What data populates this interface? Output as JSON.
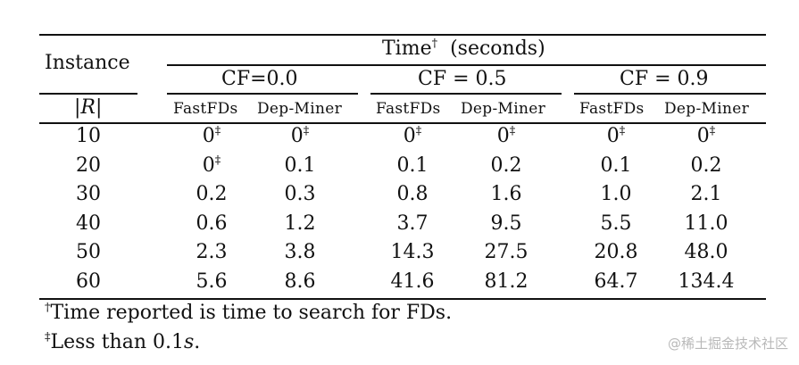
{
  "table": {
    "instance_header": "Instance",
    "r_header": "|R|",
    "time_header": "Time",
    "time_header_mark": "†",
    "time_header_unit": "(seconds)",
    "cf_groups": [
      "CF=0.0",
      "CF = 0.5",
      "CF = 0.9"
    ],
    "algo_headers": [
      "FastFDs",
      "Dep-Miner",
      "FastFDs",
      "Dep-Miner",
      "FastFDs",
      "Dep-Miner"
    ],
    "rows": [
      {
        "r": "10",
        "values": [
          [
            "0",
            "‡"
          ],
          [
            "0",
            "‡"
          ],
          [
            "0",
            "‡"
          ],
          [
            "0",
            "‡"
          ],
          [
            "0",
            "‡"
          ],
          [
            "0",
            "‡"
          ]
        ]
      },
      {
        "r": "20",
        "values": [
          [
            "0",
            "‡"
          ],
          [
            "0.1",
            ""
          ],
          [
            "0.1",
            ""
          ],
          [
            "0.2",
            ""
          ],
          [
            "0.1",
            ""
          ],
          [
            "0.2",
            ""
          ]
        ]
      },
      {
        "r": "30",
        "values": [
          [
            "0.2",
            ""
          ],
          [
            "0.3",
            ""
          ],
          [
            "0.8",
            ""
          ],
          [
            "1.6",
            ""
          ],
          [
            "1.0",
            ""
          ],
          [
            "2.1",
            ""
          ]
        ]
      },
      {
        "r": "40",
        "values": [
          [
            "0.6",
            ""
          ],
          [
            "1.2",
            ""
          ],
          [
            "3.7",
            ""
          ],
          [
            "9.5",
            ""
          ],
          [
            "5.5",
            ""
          ],
          [
            "11.0",
            ""
          ]
        ]
      },
      {
        "r": "50",
        "values": [
          [
            "2.3",
            ""
          ],
          [
            "3.8",
            ""
          ],
          [
            "14.3",
            ""
          ],
          [
            "27.5",
            ""
          ],
          [
            "20.8",
            ""
          ],
          [
            "48.0",
            ""
          ]
        ]
      },
      {
        "r": "60",
        "values": [
          [
            "5.6",
            ""
          ],
          [
            "8.6",
            ""
          ],
          [
            "41.6",
            ""
          ],
          [
            "81.2",
            ""
          ],
          [
            "64.7",
            ""
          ],
          [
            "134.4",
            ""
          ]
        ]
      }
    ]
  },
  "footnotes": [
    {
      "mark": "†",
      "text": "Time reported is time to search for FDs."
    },
    {
      "mark": "‡",
      "text": "Less than 0.1",
      "text_italic": "s",
      "text_end": "."
    }
  ],
  "watermark": "@稀土掘金技术社区"
}
